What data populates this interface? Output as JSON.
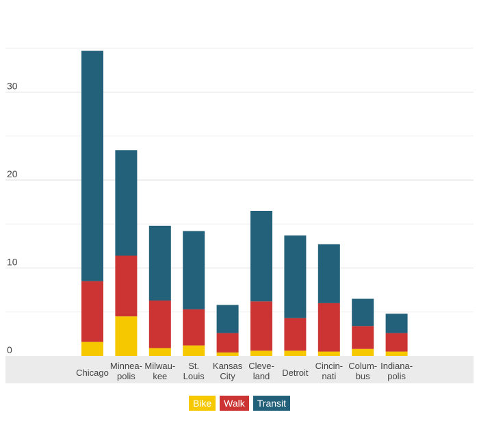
{
  "chart_data": {
    "type": "bar",
    "stacked": true,
    "categories": [
      [
        "Chicago"
      ],
      [
        "Minnea-",
        "polis"
      ],
      [
        "Milwau-",
        "kee"
      ],
      [
        "St.",
        "Louis"
      ],
      [
        "Kansas",
        "City"
      ],
      [
        "Cleve-",
        "land"
      ],
      [
        "Detroit"
      ],
      [
        "Cincin-",
        "nati"
      ],
      [
        "Colum-",
        "bus"
      ],
      [
        "Indiana-",
        "polis"
      ]
    ],
    "series": [
      {
        "name": "Bike",
        "color": "#f5c800",
        "values": [
          1.6,
          4.5,
          0.9,
          1.2,
          0.4,
          0.6,
          0.6,
          0.5,
          0.8,
          0.5
        ]
      },
      {
        "name": "Walk",
        "color": "#cc3333",
        "values": [
          6.9,
          6.9,
          5.4,
          4.1,
          2.2,
          5.6,
          3.7,
          5.5,
          2.6,
          2.1
        ]
      },
      {
        "name": "Transit",
        "color": "#23607a",
        "values": [
          26.2,
          12.0,
          8.5,
          8.9,
          3.2,
          10.3,
          9.4,
          6.7,
          3.1,
          2.2
        ]
      }
    ],
    "yticks": [
      0,
      10,
      20,
      30
    ],
    "ylim": [
      0,
      39
    ],
    "grid": true,
    "legend_position": "bottom-center"
  }
}
